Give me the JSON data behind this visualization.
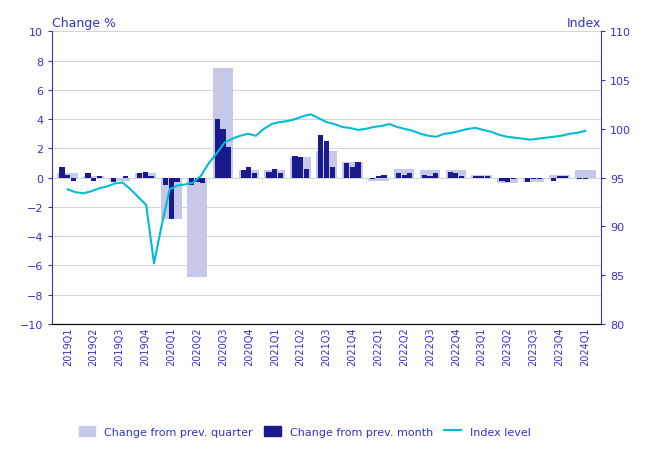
{
  "labels": [
    "2019Q1",
    "2019Q2",
    "2019Q3",
    "2019Q4",
    "2020Q1",
    "2020Q2",
    "2020Q3",
    "2020Q4",
    "2021Q1",
    "2021Q2",
    "2021Q3",
    "2021Q4",
    "2022Q1",
    "2022Q2",
    "2022Q3",
    "2022Q4",
    "2023Q1",
    "2023Q2",
    "2023Q3",
    "2023Q4",
    "2024Q1"
  ],
  "quarterly_change": [
    0.3,
    0.1,
    -0.2,
    0.3,
    -2.8,
    -6.8,
    7.5,
    0.5,
    0.5,
    1.4,
    1.8,
    1.1,
    -0.2,
    0.6,
    0.5,
    0.5,
    0.2,
    -0.4,
    -0.3,
    0.2,
    0.5
  ],
  "monthly_change": [
    0.7,
    0.2,
    -0.2,
    0.3,
    -0.2,
    0.1,
    -0.3,
    0.0,
    0.1,
    0.3,
    0.4,
    0.1,
    -0.5,
    -2.8,
    -0.3,
    -0.5,
    -0.3,
    -0.4,
    4.0,
    3.3,
    2.1,
    0.5,
    0.7,
    0.3,
    0.4,
    0.6,
    0.3,
    1.5,
    1.4,
    0.6,
    2.9,
    2.5,
    0.7,
    1.0,
    0.7,
    1.1,
    -0.1,
    0.1,
    0.2,
    0.3,
    0.2,
    0.3,
    0.2,
    0.1,
    0.3,
    0.4,
    0.3,
    0.1,
    0.1,
    0.1,
    0.1,
    -0.2,
    -0.3,
    -0.1,
    -0.3,
    -0.1,
    -0.1,
    -0.2,
    0.1,
    0.1,
    -0.1,
    -0.1,
    0.0,
    0.3,
    0.5,
    0.5
  ],
  "index_level": [
    93.8,
    93.5,
    93.4,
    93.6,
    93.9,
    94.1,
    94.4,
    94.5,
    93.8,
    93.0,
    92.2,
    86.2,
    90.2,
    93.8,
    94.2,
    94.3,
    94.5,
    95.2,
    96.5,
    97.5,
    98.6,
    99.0,
    99.3,
    99.5,
    99.3,
    100.0,
    100.5,
    100.7,
    100.8,
    101.0,
    101.3,
    101.5,
    101.1,
    100.7,
    100.5,
    100.2,
    100.1,
    99.9,
    100.0,
    100.2,
    100.3,
    100.5,
    100.2,
    100.0,
    99.8,
    99.5,
    99.3,
    99.2,
    99.5,
    99.6,
    99.8,
    100.0,
    100.1,
    99.9,
    99.7,
    99.4,
    99.2,
    99.1,
    99.0,
    98.9,
    99.0,
    99.1,
    99.2,
    99.3,
    99.5,
    99.6,
    99.8
  ],
  "quarterly_bar_color": "#c5c8e8",
  "monthly_bar_color": "#1a1a8c",
  "index_line_color": "#00bcd4",
  "ylim_left": [
    -10,
    10
  ],
  "ylim_right": [
    80,
    110
  ],
  "title_left": "Change %",
  "title_right": "Index",
  "axis_color": "#3333cc",
  "grid_color": "#cccccc",
  "background_color": "#ffffff",
  "legend_labels": [
    "Change from prev. quarter",
    "Change from prev. month",
    "Index level"
  ]
}
